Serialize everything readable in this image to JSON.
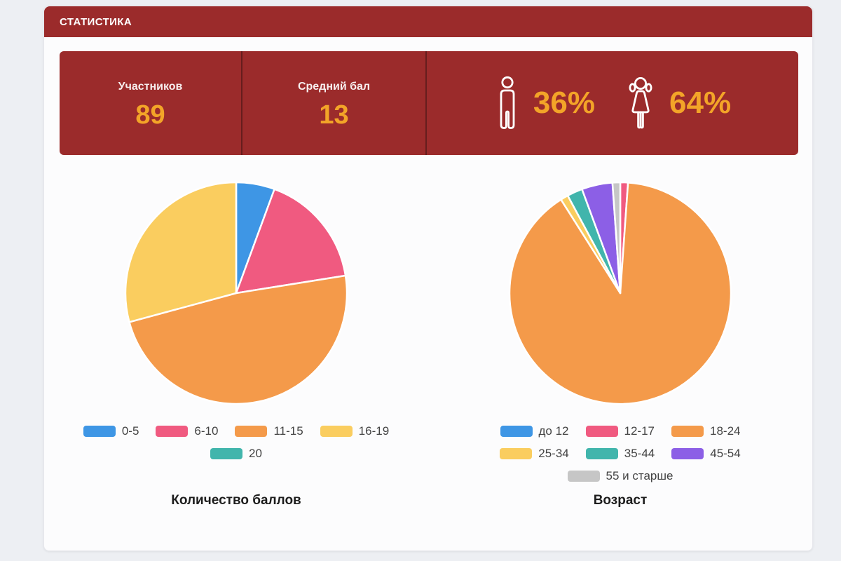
{
  "header": {
    "title": "СТАТИСТИКА"
  },
  "stats": {
    "participants": {
      "label": "Участников",
      "value": "89"
    },
    "average_score": {
      "label": "Средний бал",
      "value": "13"
    },
    "gender": {
      "male_percent": "36%",
      "female_percent": "64%"
    }
  },
  "colors": {
    "page_bg": "#edeff3",
    "card_bg": "#fcfcfd",
    "header_red": "#9b2b2b",
    "panel_red": "#9b2b2b",
    "divider_red": "#661d1d",
    "accent_gold": "#f3a428",
    "icon_white": "#ffffff",
    "legend_text": "#434343"
  },
  "chart_data": [
    {
      "type": "pie",
      "title": "Количество баллов",
      "categories": [
        "0-5",
        "6-10",
        "11-15",
        "16-19",
        "20"
      ],
      "values": [
        5,
        15,
        43,
        26,
        0
      ],
      "colors": [
        "#3e96e5",
        "#f05a80",
        "#f49a4a",
        "#facd5f",
        "#41b5ac"
      ],
      "total": 89,
      "start_angle_deg": 0,
      "direction": "clockwise",
      "legend_position": "bottom"
    },
    {
      "type": "pie",
      "title": "Возраст",
      "categories": [
        "до 12",
        "12-17",
        "18-24",
        "25-34",
        "35-44",
        "45-54",
        "55 и старше"
      ],
      "values": [
        0,
        1,
        80,
        1,
        2,
        4,
        1
      ],
      "colors": [
        "#3e96e5",
        "#f05a80",
        "#f49a4a",
        "#facd5f",
        "#41b5ac",
        "#8c5fe6",
        "#c6c6c6"
      ],
      "total": 89,
      "start_angle_deg": 0,
      "direction": "clockwise",
      "legend_position": "bottom"
    }
  ]
}
